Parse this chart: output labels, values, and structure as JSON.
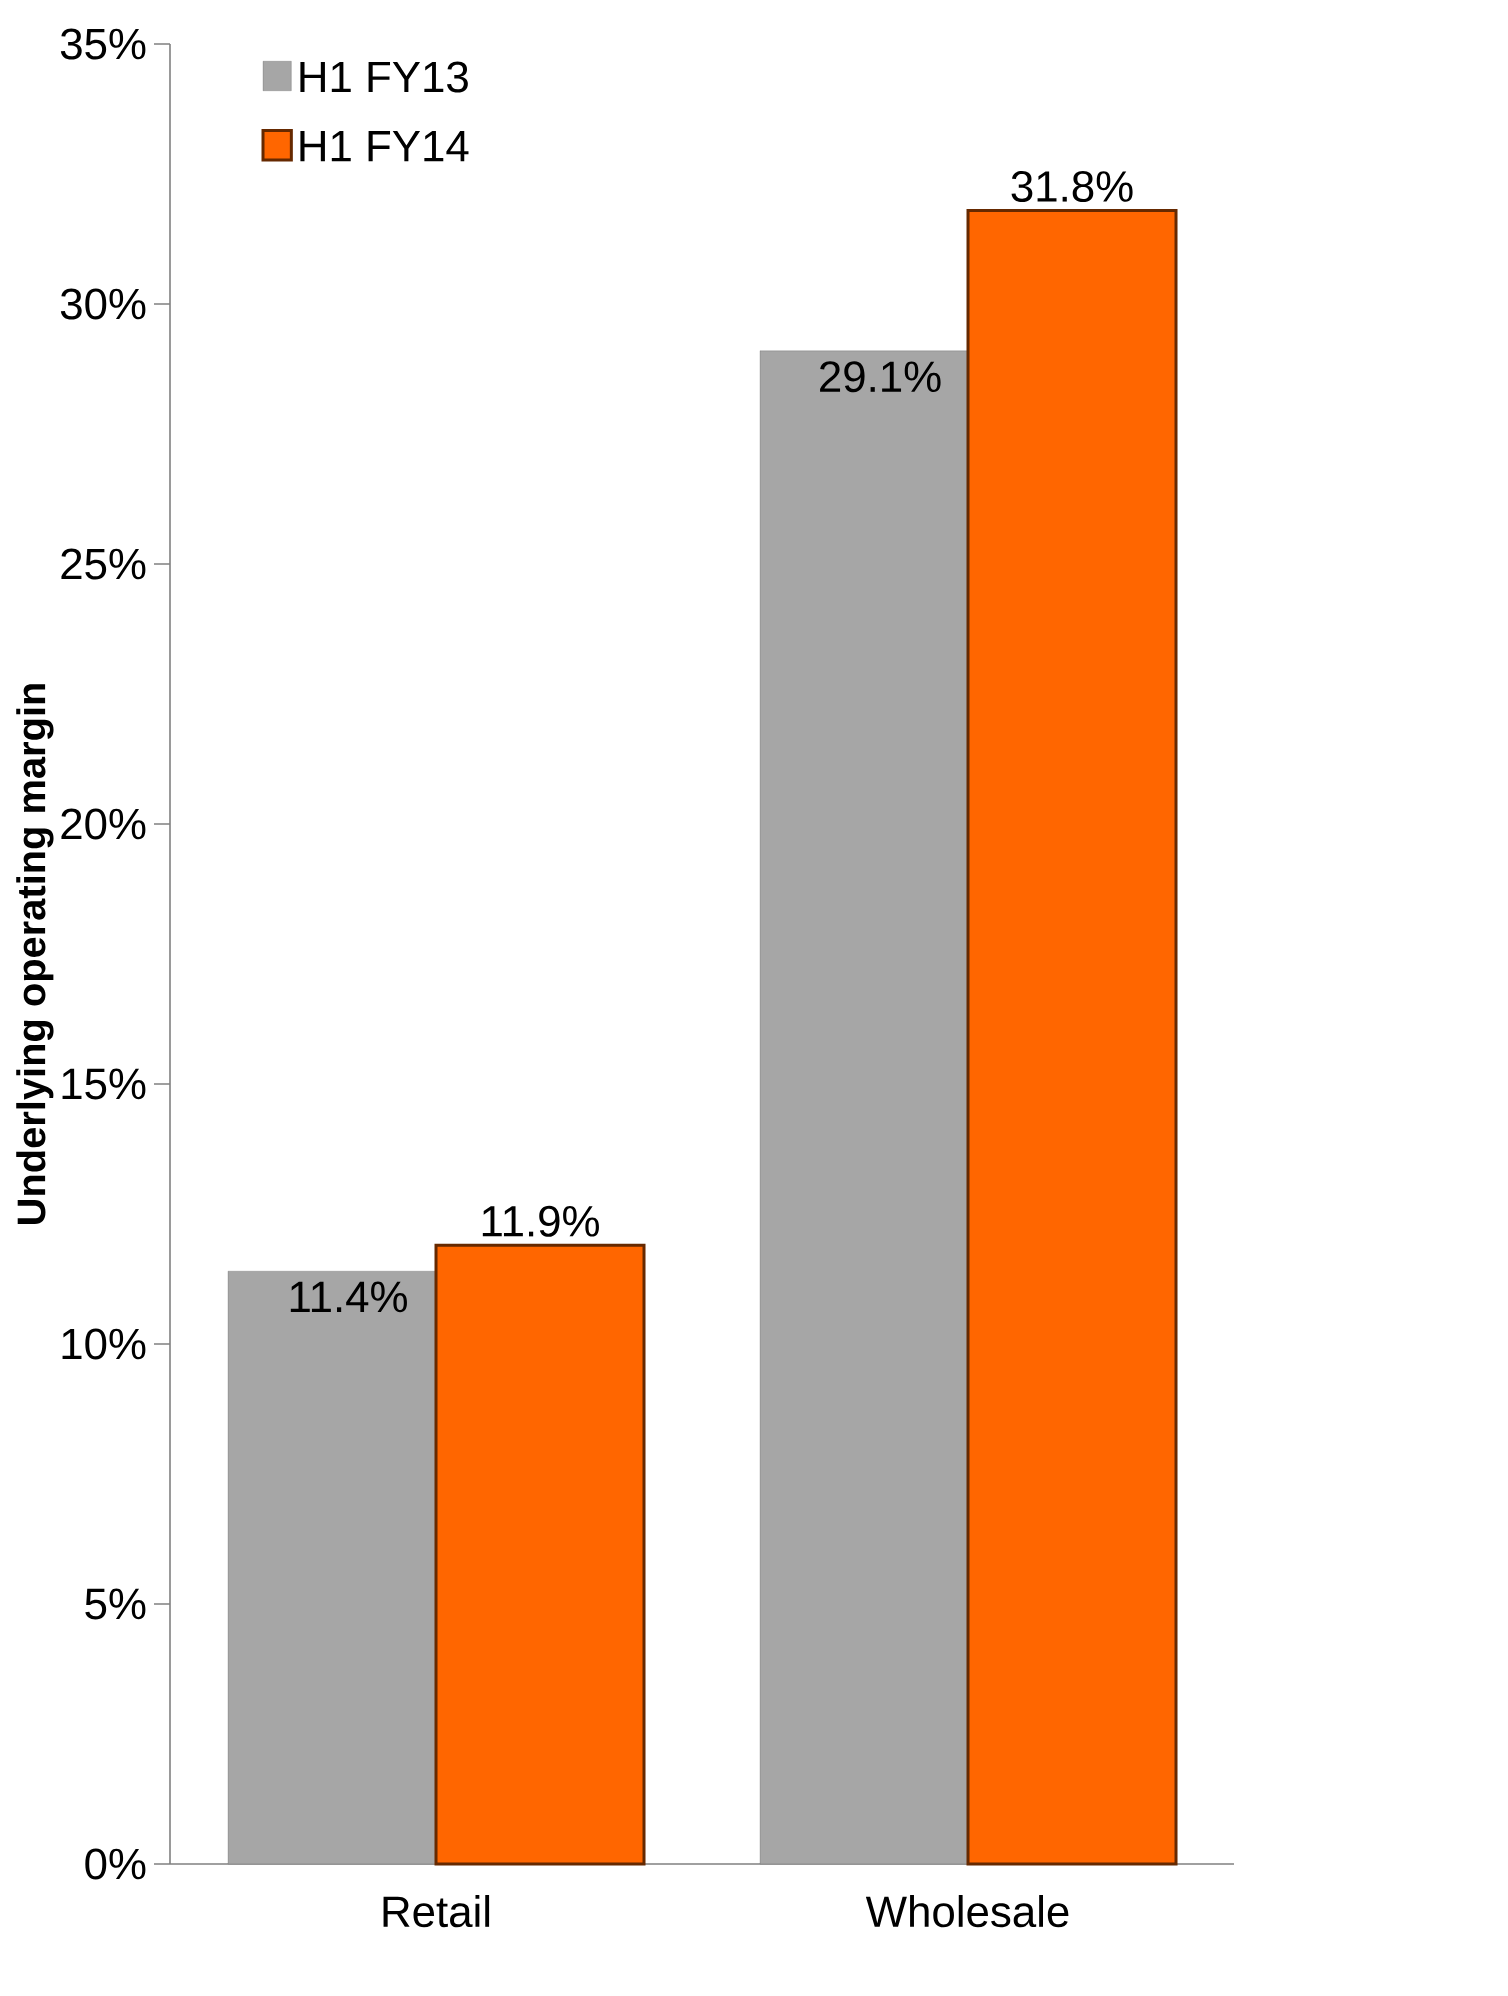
{
  "chart_data": {
    "type": "bar",
    "ylabel": "Underlying operating margin",
    "categories": [
      "Retail",
      "Wholesale"
    ],
    "series": [
      {
        "name": "H1 FY13",
        "color": "#a6a6a6",
        "values": [
          11.4,
          29.1
        ],
        "value_labels": [
          "11.4%",
          "29.1%"
        ]
      },
      {
        "name": "H1 FY14",
        "color": "#ff6600",
        "values": [
          11.9,
          31.8
        ],
        "value_labels": [
          "11.9%",
          "31.8%"
        ]
      }
    ],
    "ylim": [
      0,
      35
    ],
    "yticks": [
      {
        "value": 0,
        "label": "0%"
      },
      {
        "value": 5,
        "label": "5%"
      },
      {
        "value": 10,
        "label": "10%"
      },
      {
        "value": 15,
        "label": "15%"
      },
      {
        "value": 20,
        "label": "20%"
      },
      {
        "value": 25,
        "label": "25%"
      },
      {
        "value": 30,
        "label": "30%"
      },
      {
        "value": 35,
        "label": "35%"
      }
    ],
    "legend": "top left"
  }
}
